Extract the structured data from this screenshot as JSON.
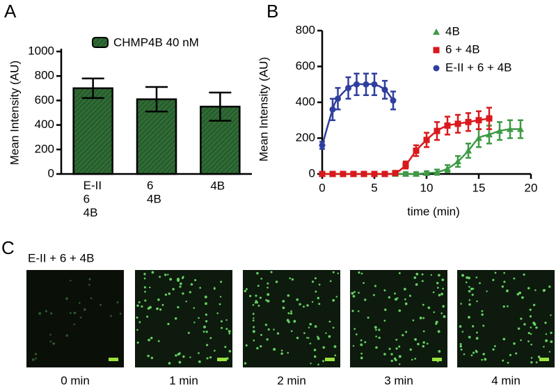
{
  "chart_data": [
    {
      "type": "bar",
      "panel_label": "A",
      "ylabel": "Mean Intensity (AU)",
      "categories": [
        "E-II\n6\n4B",
        "6\n4B",
        "4B"
      ],
      "series": [
        {
          "name": "CHMP4B 40 nM",
          "color": "#2f6b35",
          "values": [
            700,
            610,
            550
          ],
          "errors": [
            80,
            100,
            115
          ]
        }
      ],
      "ylim": [
        0,
        1000
      ],
      "yticks": [
        0,
        200,
        400,
        600,
        800,
        1000
      ],
      "hatched": true
    },
    {
      "type": "line",
      "panel_label": "B",
      "ylabel": "Mean Intensity (AU)",
      "xlabel": "time (min)",
      "xlim": [
        0,
        20
      ],
      "xticks": [
        0,
        5,
        10,
        15,
        20
      ],
      "ylim": [
        0,
        800
      ],
      "yticks": [
        0,
        200,
        400,
        600,
        800
      ],
      "series": [
        {
          "name": "4B",
          "color": "#3f9a45",
          "marker": "triangle",
          "x": [
            0,
            1,
            2,
            3,
            4,
            5,
            6,
            7,
            8,
            9,
            10,
            11,
            12,
            13,
            14,
            15,
            16,
            17,
            18,
            19
          ],
          "values": [
            0,
            0,
            0,
            0,
            0,
            0,
            0,
            0,
            0,
            0,
            5,
            10,
            30,
            70,
            130,
            200,
            220,
            240,
            250,
            250
          ],
          "errors": [
            10,
            10,
            10,
            10,
            10,
            10,
            10,
            10,
            10,
            10,
            10,
            15,
            20,
            30,
            40,
            50,
            50,
            50,
            50,
            50
          ]
        },
        {
          "name": "6 + 4B",
          "color": "#d9191c",
          "marker": "square",
          "x": [
            0,
            1,
            2,
            3,
            4,
            5,
            6,
            7,
            8,
            9,
            10,
            11,
            12,
            13,
            14,
            15,
            16
          ],
          "values": [
            0,
            0,
            0,
            0,
            0,
            0,
            0,
            5,
            50,
            130,
            190,
            240,
            270,
            280,
            290,
            300,
            310
          ],
          "errors": [
            10,
            10,
            10,
            10,
            10,
            10,
            10,
            10,
            20,
            30,
            40,
            50,
            50,
            50,
            50,
            50,
            60
          ]
        },
        {
          "name": "E-II + 6 + 4B",
          "color": "#2f3f9e",
          "marker": "circle",
          "x": [
            0,
            1,
            1.5,
            2.5,
            3.3,
            4.2,
            5,
            6,
            6.8
          ],
          "values": [
            160,
            360,
            420,
            480,
            500,
            500,
            500,
            470,
            410
          ],
          "errors": [
            20,
            60,
            60,
            60,
            60,
            60,
            60,
            50,
            50
          ]
        }
      ]
    }
  ],
  "panel_c": {
    "panel_label": "C",
    "title": "E-II + 6 + 4B",
    "captions": [
      "0 min",
      "1 min",
      "2 min",
      "3 min",
      "4 min"
    ]
  }
}
